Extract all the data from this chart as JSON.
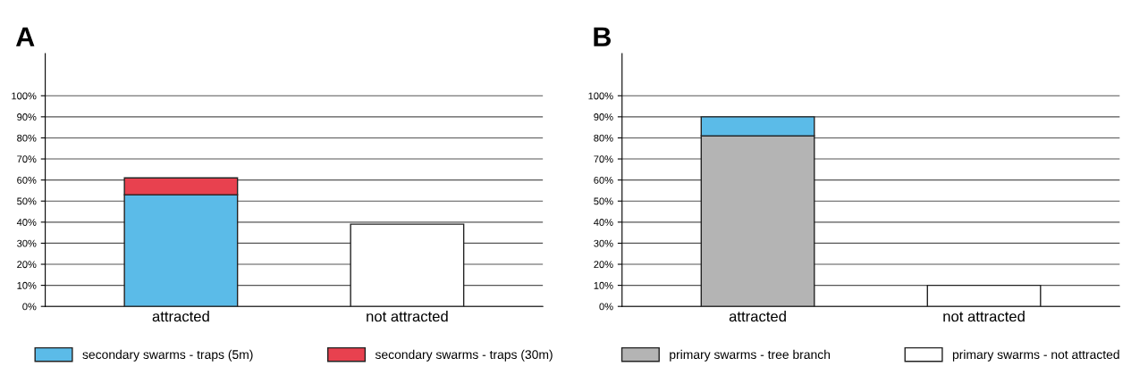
{
  "chart_data": [
    {
      "type": "bar",
      "title": "A",
      "categories": [
        "attracted",
        "not attracted"
      ],
      "stacked": true,
      "ylim": [
        0,
        120
      ],
      "yticks": [
        {
          "value": 0,
          "label": "0%"
        },
        {
          "value": 10,
          "label": "10%"
        },
        {
          "value": 20,
          "label": "20%"
        },
        {
          "value": 30,
          "label": "30%"
        },
        {
          "value": 40,
          "label": "40%"
        },
        {
          "value": 50,
          "label": "50%"
        },
        {
          "value": 60,
          "label": "60%"
        },
        {
          "value": 70,
          "label": "70%"
        },
        {
          "value": 80,
          "label": "80%"
        },
        {
          "value": 90,
          "label": "90%"
        },
        {
          "value": 100,
          "label": "100%"
        }
      ],
      "grid": "y",
      "legend": "bottom",
      "series": [
        {
          "name": "secondary swarms - traps (5m)",
          "color": "#5bbbe8",
          "values": [
            53,
            null
          ]
        },
        {
          "name": "secondary swarms - traps (30m)",
          "color": "#e8414f",
          "values": [
            8,
            null
          ]
        },
        {
          "color": "#ffffff",
          "values": [
            null,
            39
          ]
        }
      ]
    },
    {
      "type": "bar",
      "title": "B",
      "categories": [
        "attracted",
        "not attracted"
      ],
      "stacked": true,
      "ylim": [
        0,
        120
      ],
      "yticks": [
        {
          "value": 0,
          "label": "0%"
        },
        {
          "value": 10,
          "label": "10%"
        },
        {
          "value": 20,
          "label": "20%"
        },
        {
          "value": 30,
          "label": "30%"
        },
        {
          "value": 40,
          "label": "40%"
        },
        {
          "value": 50,
          "label": "50%"
        },
        {
          "value": 60,
          "label": "60%"
        },
        {
          "value": 70,
          "label": "70%"
        },
        {
          "value": 80,
          "label": "80%"
        },
        {
          "value": 90,
          "label": "90%"
        },
        {
          "value": 100,
          "label": "100%"
        }
      ],
      "grid": "y",
      "legend": "bottom",
      "series": [
        {
          "name": "primary swarms - tree branch",
          "color": "#b4b4b4",
          "values": [
            81,
            null
          ]
        },
        {
          "color": "#5bbbe8",
          "values": [
            9,
            null
          ]
        },
        {
          "name": "primary swarms - not attracted",
          "color": "#ffffff",
          "values": [
            null,
            10
          ]
        }
      ]
    }
  ]
}
